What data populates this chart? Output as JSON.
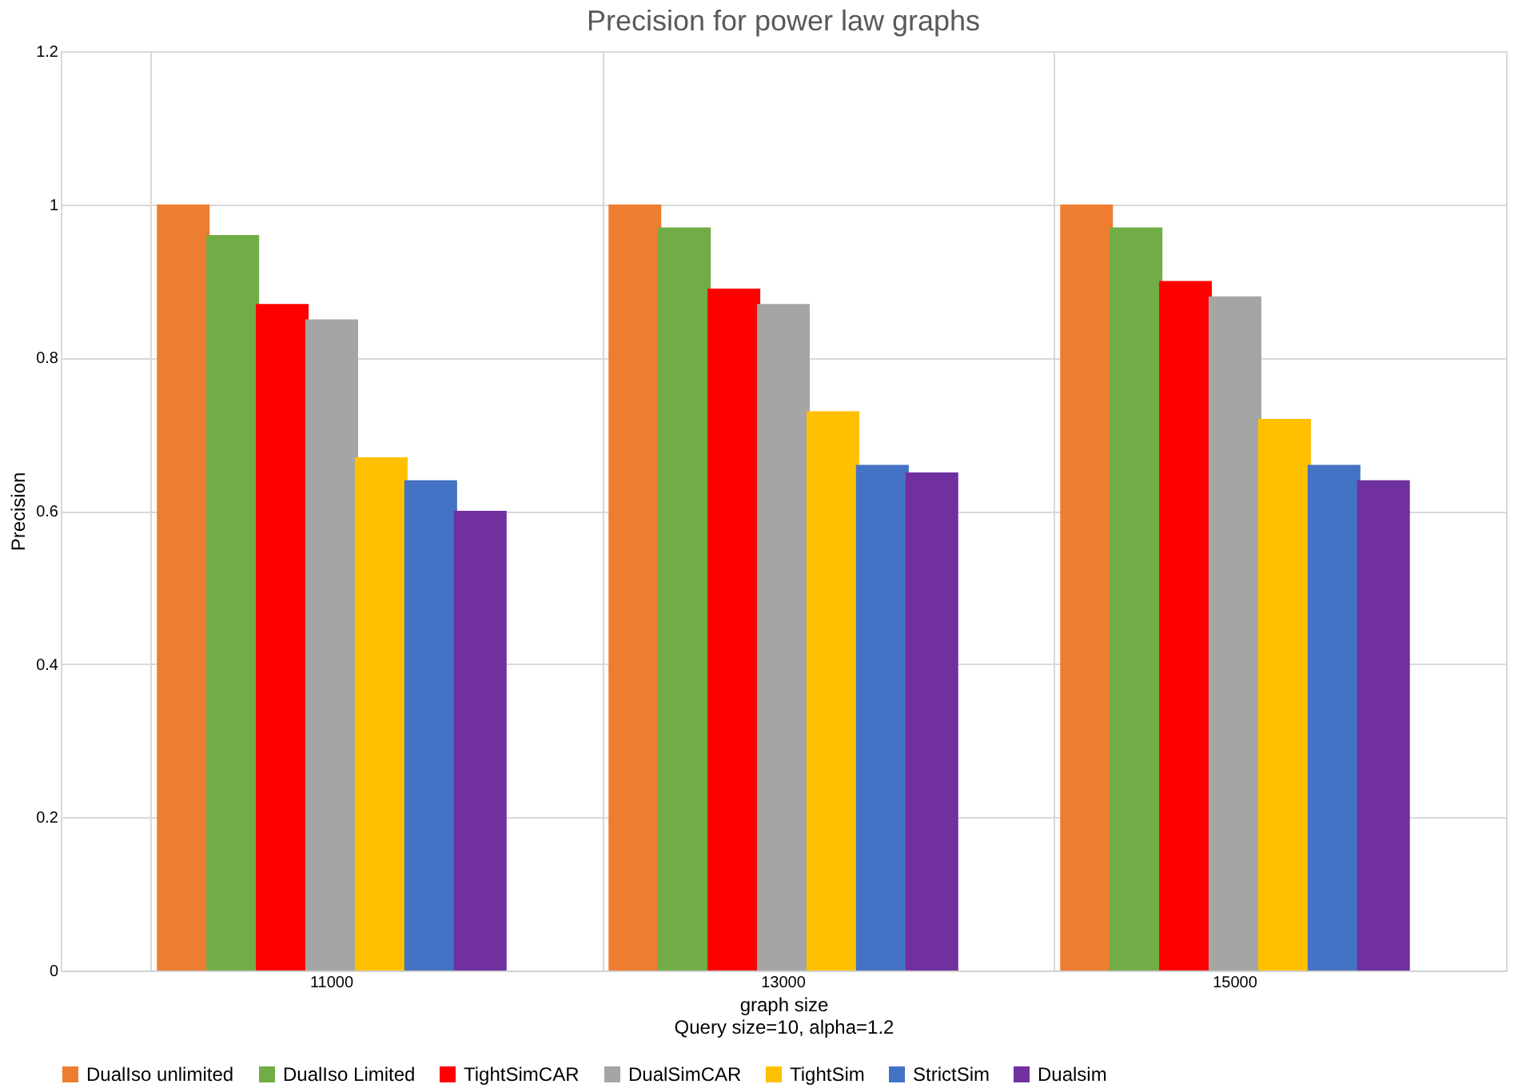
{
  "chart_data": {
    "type": "bar",
    "title": "Precision for power law graphs",
    "xlabel": "graph size",
    "ylabel": "Precision",
    "annotations": [
      "Query size=10, alpha=1.2"
    ],
    "categories": [
      "11000",
      "13000",
      "15000"
    ],
    "series": [
      {
        "name": "DualIso unlimited",
        "color": "#ed7d31",
        "values": [
          1,
          1,
          1
        ]
      },
      {
        "name": "DualIso Limited",
        "color": "#70ad47",
        "values": [
          0.96,
          0.97,
          0.97
        ]
      },
      {
        "name": "TightSimCAR",
        "color": "#ff0000",
        "values": [
          0.87,
          0.89,
          0.9
        ]
      },
      {
        "name": "DualSimCAR",
        "color": "#a5a5a5",
        "values": [
          0.85,
          0.87,
          0.88
        ]
      },
      {
        "name": "TightSim",
        "color": "#ffc000",
        "values": [
          0.67,
          0.73,
          0.72
        ]
      },
      {
        "name": "StrictSim",
        "color": "#4472c4",
        "values": [
          0.64,
          0.66,
          0.66
        ]
      },
      {
        "name": "Dualsim",
        "color": "#7030a0",
        "values": [
          0.6,
          0.65,
          0.64
        ]
      }
    ],
    "ylim": [
      0,
      1.2
    ],
    "yticks": [
      0,
      0.2,
      0.4,
      0.6,
      0.8,
      1,
      1.2
    ],
    "grid": true,
    "legend": "bottom"
  }
}
